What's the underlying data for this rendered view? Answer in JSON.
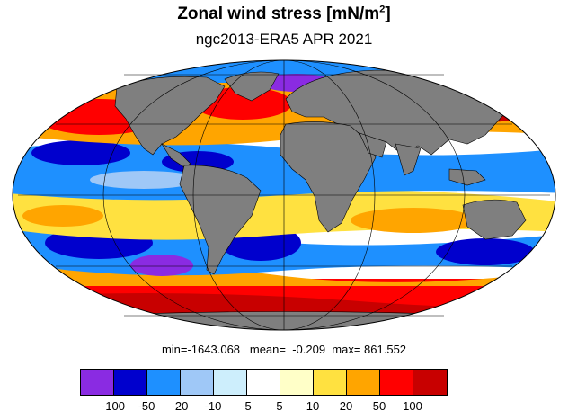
{
  "header": {
    "title_main": "Zonal wind stress [mN/m",
    "title_sup": "2",
    "title_end": "]",
    "subtitle": "ngc2013-ERA5  APR 2021"
  },
  "map": {
    "projection": "Mollweide",
    "land_color": "#7f7f7f",
    "ocean_field_note": ""
  },
  "stats": {
    "line": "min=-1643.068   mean=  -0.209  max= 861.552"
  },
  "colorbar": {
    "colors": [
      "#8a2be2",
      "#0000cd",
      "#1e90ff",
      "#9fc8f7",
      "#cdeefc",
      "#ffffff",
      "#ffffc8",
      "#ffe140",
      "#ffa500",
      "#ff0000",
      "#c80000"
    ],
    "labels": [
      "-100",
      "-50",
      "-20",
      "-10",
      "-5",
      "5",
      "10",
      "20",
      "50",
      "100"
    ]
  }
}
